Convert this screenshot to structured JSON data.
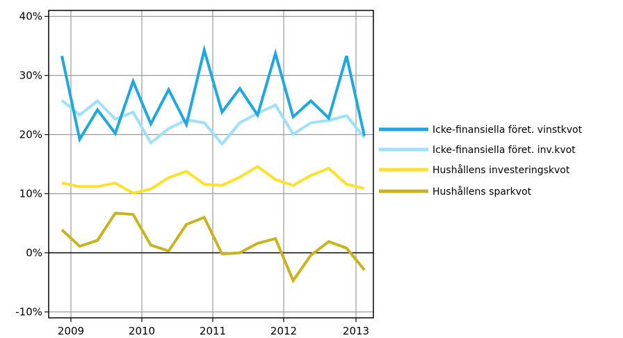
{
  "chart_data": {
    "type": "line",
    "title": "",
    "xlabel": "",
    "ylabel": "",
    "ylim": [
      -11,
      41
    ],
    "y_ticks": [
      {
        "value": 40,
        "label": "40%"
      },
      {
        "value": 30,
        "label": "30%"
      },
      {
        "value": 20,
        "label": "20%"
      },
      {
        "value": 10,
        "label": "10%"
      },
      {
        "value": 0,
        "label": "0%"
      },
      {
        "value": -10,
        "label": "-10%"
      }
    ],
    "x_ticks": [
      "2009",
      "2010",
      "2011",
      "2012",
      "2013"
    ],
    "grid": true,
    "legend_position": "right",
    "series": [
      {
        "name": "Icke-finansiella föret. vinstkvot",
        "color": "#1ea7e1",
        "values": [
          33.3,
          19.2,
          24.2,
          20.2,
          29.0,
          21.8,
          27.6,
          21.7,
          34.3,
          23.8,
          27.8,
          23.3,
          33.7,
          23.0,
          25.7,
          22.8,
          33.3,
          19.8
        ]
      },
      {
        "name": "Icke-finansiella föret. inv.kvot",
        "color": "#9fdfff",
        "values": [
          25.8,
          23.3,
          25.7,
          22.6,
          23.8,
          18.6,
          21.0,
          22.5,
          22.0,
          18.4,
          22.0,
          23.6,
          25.0,
          20.1,
          22.0,
          22.4,
          23.2,
          19.5
        ]
      },
      {
        "name": "Hushållens investeringskvot",
        "color": "#ffe12b",
        "values": [
          11.8,
          11.2,
          11.2,
          11.8,
          10.1,
          10.8,
          12.7,
          13.8,
          11.6,
          11.4,
          12.8,
          14.6,
          12.4,
          11.4,
          13.1,
          14.3,
          11.6,
          10.9
        ]
      },
      {
        "name": "Hushållens sparkvot",
        "color": "#c9b31f",
        "values": [
          3.9,
          1.1,
          2.1,
          6.7,
          6.5,
          1.3,
          0.3,
          4.8,
          6.0,
          -0.2,
          0.0,
          1.6,
          2.4,
          -4.7,
          -0.4,
          1.9,
          0.8,
          -2.9
        ]
      }
    ]
  }
}
